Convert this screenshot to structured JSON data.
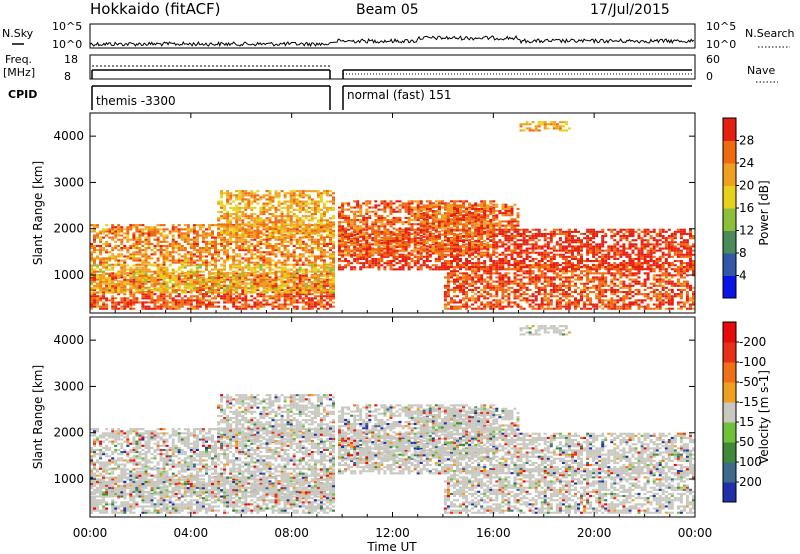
{
  "header": {
    "station": "Hokkaido (fitACF)",
    "beam": "Beam 05",
    "date": "17/Jul/2015"
  },
  "top_panel": {
    "left_label": "N.Sky",
    "right_label": "N.Search",
    "left_ticks": [
      "10^5",
      "10^0"
    ],
    "right_ticks": [
      "10^5",
      "10^0"
    ]
  },
  "freq_panel": {
    "left_label_1": "Freq.",
    "left_label_2": "[MHz]",
    "right_label": "Nave",
    "left_ticks": [
      "18",
      "8"
    ],
    "right_ticks": [
      "60",
      "0"
    ]
  },
  "cpid": {
    "label": "CPID",
    "segments": [
      {
        "name": "themis -3300",
        "start_hour": 0.0,
        "end_hour": 9.6
      },
      {
        "name": "normal (fast) 151",
        "start_hour": 9.75,
        "end_hour": 24.0
      }
    ]
  },
  "chart_data": [
    {
      "type": "heatmap",
      "name": "Power",
      "ylabel": "Slant Range [km]",
      "xlabel": "Time UT",
      "xlim": [
        0,
        24
      ],
      "ylim": [
        180,
        4500
      ],
      "x_ticks": [
        "00:00",
        "04:00",
        "08:00",
        "12:00",
        "16:00",
        "20:00",
        "00:00"
      ],
      "y_ticks": [
        1000,
        2000,
        3000,
        4000
      ],
      "colorbar_label": "Power [dB]",
      "colorbar_ticks": [
        4,
        8,
        12,
        16,
        20,
        24,
        28
      ],
      "colorbar_colors": [
        "#0a14e6",
        "#3358a8",
        "#4d8a5a",
        "#8cbf3a",
        "#e6d21a",
        "#f0a020",
        "#f06a10",
        "#e62010"
      ]
    },
    {
      "type": "heatmap",
      "name": "Velocity",
      "ylabel": "Slant Range [km]",
      "xlabel": "Time UT",
      "xlim": [
        0,
        24
      ],
      "ylim": [
        180,
        4500
      ],
      "x_ticks": [
        "00:00",
        "04:00",
        "08:00",
        "12:00",
        "16:00",
        "20:00",
        "00:00"
      ],
      "y_ticks": [
        1000,
        2000,
        3000,
        4000
      ],
      "colorbar_label": "Velocity [m s-1]",
      "colorbar_ticks": [
        "200",
        "100",
        "50",
        "15",
        "-15",
        "-50",
        "-100",
        "-200"
      ],
      "colorbar_colors": [
        "#2030a8",
        "#3d6a8a",
        "#3f8a3a",
        "#70c03a",
        "#c8c8c0",
        "#f0a020",
        "#f07018",
        "#e83018",
        "#e60a0a"
      ]
    }
  ]
}
